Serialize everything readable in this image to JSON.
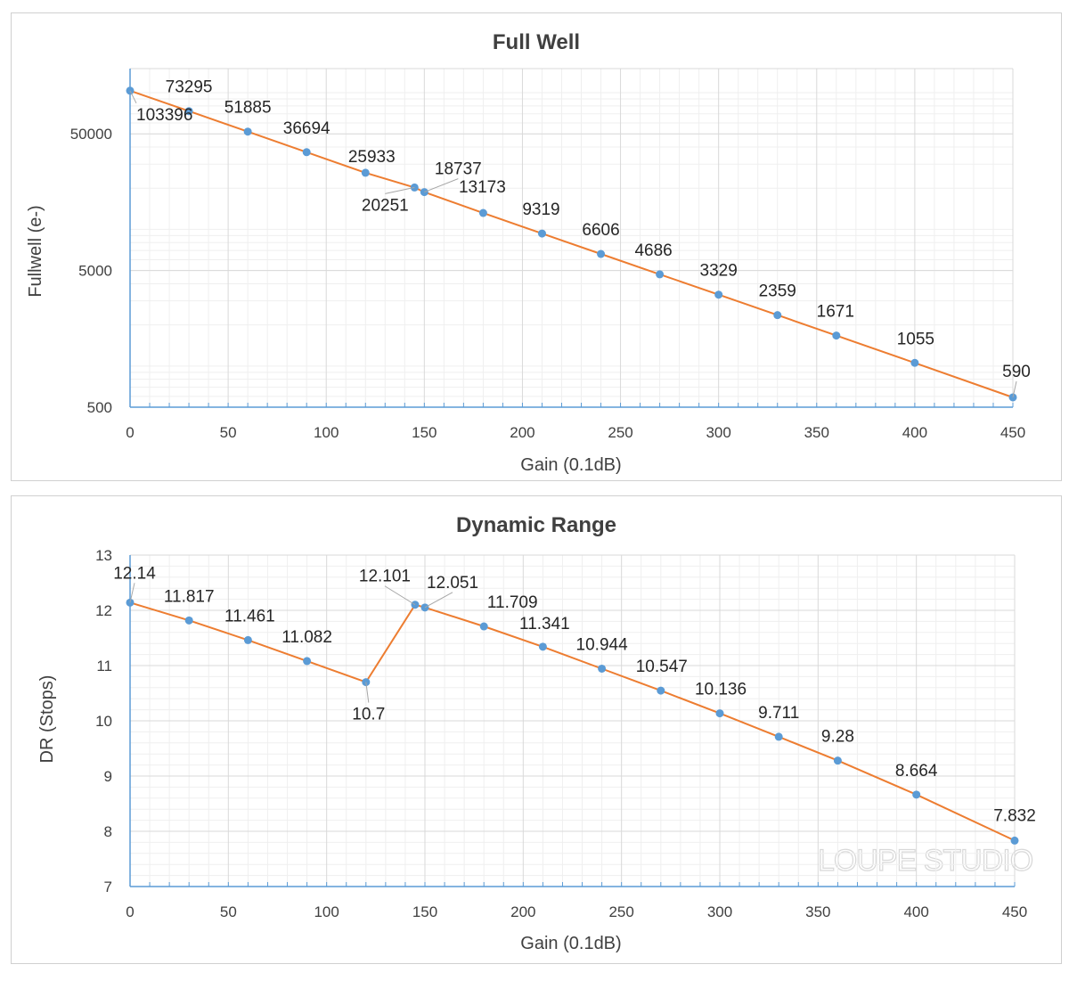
{
  "colors": {
    "line": "#ED7D31",
    "marker": "#5B9BD5",
    "axis": "#5B9BD5",
    "grid_major": "#d9d9d9",
    "grid_minor": "#efefef"
  },
  "watermark": "LOUPE STUDIO",
  "chart_data": [
    {
      "id": "fw",
      "type": "line",
      "title": "Full Well",
      "xlabel": "Gain (0.1dB)",
      "ylabel": "Fullwell (e-)",
      "yscale": "log",
      "xlim": [
        0,
        450
      ],
      "ylim": [
        500,
        150000
      ],
      "xticks": [
        0,
        50,
        100,
        150,
        200,
        250,
        300,
        350,
        400,
        450
      ],
      "yticks": [
        {
          "value": 500,
          "label": "500"
        },
        {
          "value": 5000,
          "label": "5000"
        },
        {
          "value": 50000,
          "label": "50000"
        }
      ],
      "series": [
        {
          "name": "Full Well",
          "x": [
            0,
            30,
            60,
            90,
            120,
            145,
            150,
            180,
            210,
            240,
            270,
            300,
            330,
            360,
            400,
            450
          ],
          "values": [
            103396,
            73295,
            51885,
            36694,
            25933,
            20251,
            18737,
            13173,
            9319,
            6606,
            4686,
            3329,
            2359,
            1671,
            1055,
            590
          ],
          "labels": [
            "103396",
            "73295",
            "51885",
            "36694",
            "25933",
            "20251",
            "18737",
            "13173",
            "9319",
            "6606",
            "4686",
            "3329",
            "2359",
            "1671",
            "1055",
            "590"
          ]
        }
      ]
    },
    {
      "id": "dr",
      "type": "line",
      "title": "Dynamic Range",
      "xlabel": "Gain (0.1dB)",
      "ylabel": "DR (Stops)",
      "yscale": "linear",
      "xlim": [
        0,
        450
      ],
      "ylim": [
        7,
        13
      ],
      "xticks": [
        0,
        50,
        100,
        150,
        200,
        250,
        300,
        350,
        400,
        450
      ],
      "yticks": [
        {
          "value": 7,
          "label": "7"
        },
        {
          "value": 8,
          "label": "8"
        },
        {
          "value": 9,
          "label": "9"
        },
        {
          "value": 10,
          "label": "10"
        },
        {
          "value": 11,
          "label": "11"
        },
        {
          "value": 12,
          "label": "12"
        },
        {
          "value": 13,
          "label": "13"
        }
      ],
      "series": [
        {
          "name": "Dynamic Range",
          "x": [
            0,
            30,
            60,
            90,
            120,
            145,
            150,
            180,
            210,
            240,
            270,
            300,
            330,
            360,
            400,
            450
          ],
          "values": [
            12.14,
            11.817,
            11.461,
            11.082,
            10.7,
            12.101,
            12.051,
            11.709,
            11.341,
            10.944,
            10.547,
            10.136,
            9.711,
            9.28,
            8.664,
            7.832
          ],
          "labels": [
            "12.14",
            "11.817",
            "11.461",
            "11.082",
            "10.7",
            "12.101",
            "12.051",
            "11.709",
            "11.341",
            "10.944",
            "10.547",
            "10.136",
            "9.711",
            "9.28",
            "8.664",
            "7.832"
          ]
        }
      ]
    }
  ]
}
